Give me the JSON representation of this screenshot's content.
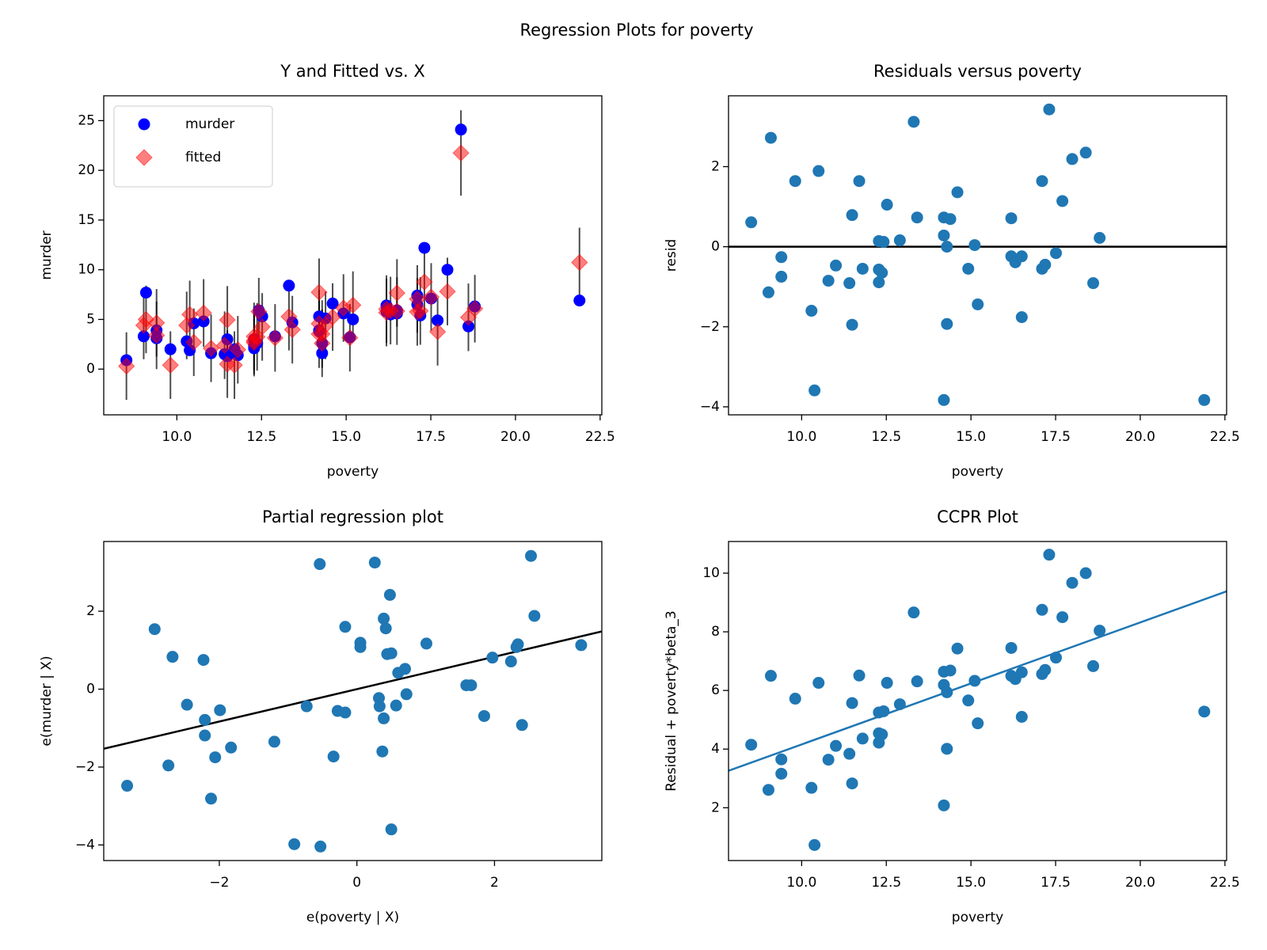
{
  "title": "Regression Plots for poverty",
  "chart_data": [
    {
      "type": "scatter",
      "title": "Y and Fitted vs. X",
      "xlabel": "poverty",
      "ylabel": "murder",
      "x": [
        8.51,
        9.09,
        9.02,
        9.4,
        9.4,
        9.81,
        10.38,
        10.29,
        10.5,
        10.79,
        11.01,
        11.41,
        11.49,
        11.49,
        11.7,
        11.8,
        12.28,
        12.28,
        12.28,
        12.42,
        12.37,
        12.52,
        12.9,
        13.31,
        13.41,
        14.2,
        14.2,
        14.2,
        14.29,
        14.29,
        14.39,
        14.6,
        14.92,
        15.11,
        15.2,
        16.19,
        16.19,
        16.31,
        16.5,
        16.5,
        17.1,
        17.1,
        17.19,
        17.31,
        17.51,
        17.7,
        17.99,
        18.39,
        18.61,
        18.8,
        21.89
      ],
      "series": [
        {
          "name": "murder",
          "color": "#0000ff",
          "marker": "circle",
          "values": [
            0.9,
            7.7,
            3.3,
            3.1,
            3.9,
            2.0,
            1.9,
            2.8,
            4.6,
            4.8,
            1.6,
            1.5,
            3.0,
            1.3,
            2.0,
            1.4,
            2.1,
            2.4,
            3.0,
            5.9,
            2.6,
            5.3,
            3.3,
            8.4,
            4.7,
            5.3,
            3.8,
            3.9,
            2.6,
            1.6,
            5.1,
            6.6,
            5.6,
            3.2,
            5.0,
            6.4,
            5.8,
            5.5,
            5.6,
            5.9,
            7.4,
            6.5,
            5.4,
            12.2,
            7.1,
            4.9,
            10.0,
            24.1,
            4.3,
            6.3,
            6.9
          ]
        },
        {
          "name": "fitted",
          "color": "#ff0000",
          "marker": "diamond",
          "values": [
            0.3,
            5.0,
            4.4,
            3.4,
            4.65,
            0.4,
            5.5,
            4.4,
            2.7,
            5.65,
            2.1,
            2.4,
            4.95,
            0.5,
            0.4,
            1.95,
            2.67,
            3.29,
            2.86,
            5.78,
            3.25,
            4.25,
            3.14,
            5.28,
            3.97,
            4.57,
            3.52,
            7.73,
            2.6,
            3.53,
            4.41,
            5.24,
            6.15,
            3.16,
            6.44,
            5.69,
            6.04,
            5.89,
            5.84,
            7.66,
            5.76,
            7.05,
            5.85,
            8.77,
            7.26,
            3.76,
            7.81,
            21.75,
            5.21,
            6.08,
            10.73
          ],
          "errors": [
            3.4,
            3.4,
            3.4,
            3.4,
            3.4,
            3.4,
            3.4,
            3.4,
            3.4,
            3.4,
            3.4,
            3.4,
            3.4,
            3.4,
            3.4,
            3.4,
            3.4,
            3.4,
            3.4,
            3.4,
            3.4,
            3.4,
            3.4,
            3.4,
            3.4,
            3.4,
            3.4,
            3.4,
            3.4,
            3.4,
            3.4,
            3.4,
            3.4,
            3.4,
            3.4,
            3.4,
            3.4,
            3.4,
            3.4,
            3.4,
            3.4,
            3.4,
            3.4,
            3.4,
            3.4,
            3.4,
            3.4,
            4.3,
            3.4,
            3.4,
            3.5
          ]
        }
      ],
      "xlim": [
        7.84,
        22.55
      ],
      "ylim": [
        -4.6,
        27.5
      ],
      "xticks": [
        {
          "value": 10,
          "label": "10.0"
        },
        12.5,
        {
          "value": 15,
          "label": "15.0"
        },
        17.5,
        {
          "value": 20,
          "label": "20.0"
        },
        22.5
      ],
      "yticks": [
        0,
        5,
        10,
        15,
        20,
        25
      ],
      "legend": "upper left"
    },
    {
      "type": "scatter",
      "title": "Residuals versus poverty",
      "xlabel": "poverty",
      "ylabel": "resid",
      "x": [
        8.51,
        9.09,
        9.02,
        9.4,
        9.4,
        9.81,
        10.38,
        10.29,
        10.5,
        10.79,
        11.01,
        11.41,
        11.49,
        11.49,
        11.7,
        11.8,
        12.28,
        12.28,
        12.28,
        12.42,
        12.37,
        12.52,
        12.9,
        13.31,
        13.41,
        14.2,
        14.2,
        14.2,
        14.29,
        14.29,
        14.39,
        14.6,
        14.92,
        15.11,
        15.2,
        16.19,
        16.19,
        16.31,
        16.5,
        16.5,
        17.1,
        17.1,
        17.19,
        17.31,
        17.51,
        17.7,
        17.99,
        18.39,
        18.61,
        18.8,
        21.89
      ],
      "series": [
        {
          "color": "#1f77b4",
          "marker": "circle",
          "values": [
            0.61,
            2.72,
            -1.14,
            -0.26,
            -0.75,
            1.64,
            -3.59,
            -1.6,
            1.89,
            -0.85,
            -0.47,
            -0.91,
            -1.95,
            0.79,
            1.64,
            -0.55,
            -0.57,
            -0.89,
            0.14,
            0.12,
            -0.65,
            1.05,
            0.16,
            3.12,
            0.73,
            0.73,
            0.28,
            -3.83,
            0.0,
            -1.93,
            0.69,
            1.36,
            -0.55,
            0.04,
            -1.44,
            0.71,
            -0.24,
            -0.39,
            -0.24,
            -1.76,
            1.64,
            -0.55,
            -0.45,
            3.43,
            -0.16,
            1.14,
            2.19,
            2.35,
            -0.91,
            0.22,
            -3.83
          ]
        }
      ],
      "hline": 0,
      "line_color": "#000000",
      "xlim": [
        7.84,
        22.55
      ],
      "ylim": [
        -4.2,
        3.77
      ],
      "xticks": [
        {
          "value": 10,
          "label": "10.0"
        },
        12.5,
        {
          "value": 15,
          "label": "15.0"
        },
        17.5,
        {
          "value": 20,
          "label": "20.0"
        },
        22.5
      ],
      "yticks": [
        {
          "value": -4,
          "label": "−4"
        },
        {
          "value": -2,
          "label": "−2"
        },
        0,
        2
      ]
    },
    {
      "type": "scatter",
      "title": "Partial regression plot",
      "xlabel": "e(poverty | X)",
      "ylabel": "e(murder | X)",
      "x": [
        -3.34,
        -2.94,
        -2.74,
        -2.68,
        -2.47,
        -2.23,
        -2.21,
        -2.21,
        -2.12,
        -2.06,
        -1.99,
        -1.83,
        -1.2,
        -0.91,
        -0.73,
        -0.54,
        -0.53,
        -0.34,
        -0.28,
        -0.17,
        -0.17,
        0.05,
        0.05,
        0.26,
        0.32,
        0.33,
        0.37,
        0.39,
        0.39,
        0.42,
        0.44,
        0.48,
        0.5,
        0.5,
        0.57,
        0.6,
        0.7,
        0.72,
        1.01,
        1.59,
        1.66,
        1.85,
        1.97,
        2.24,
        2.32,
        2.34,
        2.4,
        2.53,
        2.58,
        3.26
      ],
      "series": [
        {
          "color": "#1f77b4",
          "marker": "circle",
          "values": [
            -2.48,
            1.54,
            -1.96,
            0.83,
            -0.4,
            0.75,
            -0.79,
            -1.19,
            -2.81,
            -1.75,
            -0.54,
            -1.5,
            -1.35,
            -3.98,
            -0.44,
            3.21,
            -4.04,
            -1.73,
            -0.56,
            -0.6,
            1.6,
            1.19,
            1.08,
            3.25,
            -0.23,
            -0.44,
            -1.6,
            -0.75,
            1.81,
            1.56,
            0.9,
            2.42,
            -3.6,
            0.92,
            -0.42,
            0.42,
            0.52,
            -0.13,
            1.17,
            0.1,
            0.1,
            -0.69,
            0.81,
            0.71,
            1.08,
            1.15,
            -0.92,
            3.42,
            1.88,
            1.13
          ]
        }
      ],
      "slope": 0.416,
      "line_color": "#000000",
      "xlim": [
        -3.68,
        3.56
      ],
      "ylim": [
        -4.4,
        3.79
      ],
      "xticks": [
        {
          "value": -2,
          "label": "−2"
        },
        0,
        2
      ],
      "yticks": [
        {
          "value": -4,
          "label": "−4"
        },
        {
          "value": -2,
          "label": "−2"
        },
        0,
        2
      ]
    },
    {
      "type": "scatter",
      "title": "CCPR Plot",
      "xlabel": "poverty",
      "ylabel": "Residual + poverty*beta_3",
      "x": [
        8.51,
        9.09,
        9.02,
        9.4,
        9.4,
        9.81,
        10.38,
        10.29,
        10.5,
        10.79,
        11.01,
        11.41,
        11.49,
        11.49,
        11.7,
        11.8,
        12.28,
        12.28,
        12.28,
        12.42,
        12.37,
        12.52,
        12.9,
        13.31,
        13.41,
        14.2,
        14.2,
        14.2,
        14.29,
        14.29,
        14.39,
        14.6,
        14.92,
        15.11,
        15.2,
        16.19,
        16.19,
        16.31,
        16.5,
        16.5,
        17.1,
        17.1,
        17.19,
        17.31,
        17.51,
        17.7,
        17.99,
        18.39,
        18.61,
        18.8,
        21.89
      ],
      "series": [
        {
          "color": "#1f77b4",
          "marker": "circle",
          "values": [
            4.15,
            6.5,
            2.61,
            3.65,
            3.16,
            5.72,
            0.73,
            2.68,
            6.26,
            3.64,
            4.11,
            3.84,
            2.83,
            5.57,
            6.51,
            4.36,
            4.54,
            4.22,
            5.25,
            5.29,
            4.5,
            6.26,
            5.53,
            8.66,
            6.31,
            6.64,
            6.19,
            2.08,
            5.94,
            4.01,
            6.68,
            7.43,
            5.66,
            6.33,
            4.88,
            7.45,
            6.5,
            6.39,
            6.62,
            5.1,
            8.75,
            6.56,
            6.7,
            10.63,
            7.12,
            8.5,
            9.67,
            10.0,
            6.83,
            8.04,
            5.28
          ]
        }
      ],
      "slope": 0.416,
      "line_color": "#1f77b4",
      "xlim": [
        7.84,
        22.55
      ],
      "ylim": [
        0.2,
        11.08
      ],
      "xticks": [
        {
          "value": 10,
          "label": "10.0"
        },
        12.5,
        {
          "value": 15,
          "label": "15.0"
        },
        17.5,
        {
          "value": 20,
          "label": "20.0"
        },
        22.5
      ],
      "yticks": [
        2,
        4,
        6,
        8,
        10
      ]
    }
  ]
}
